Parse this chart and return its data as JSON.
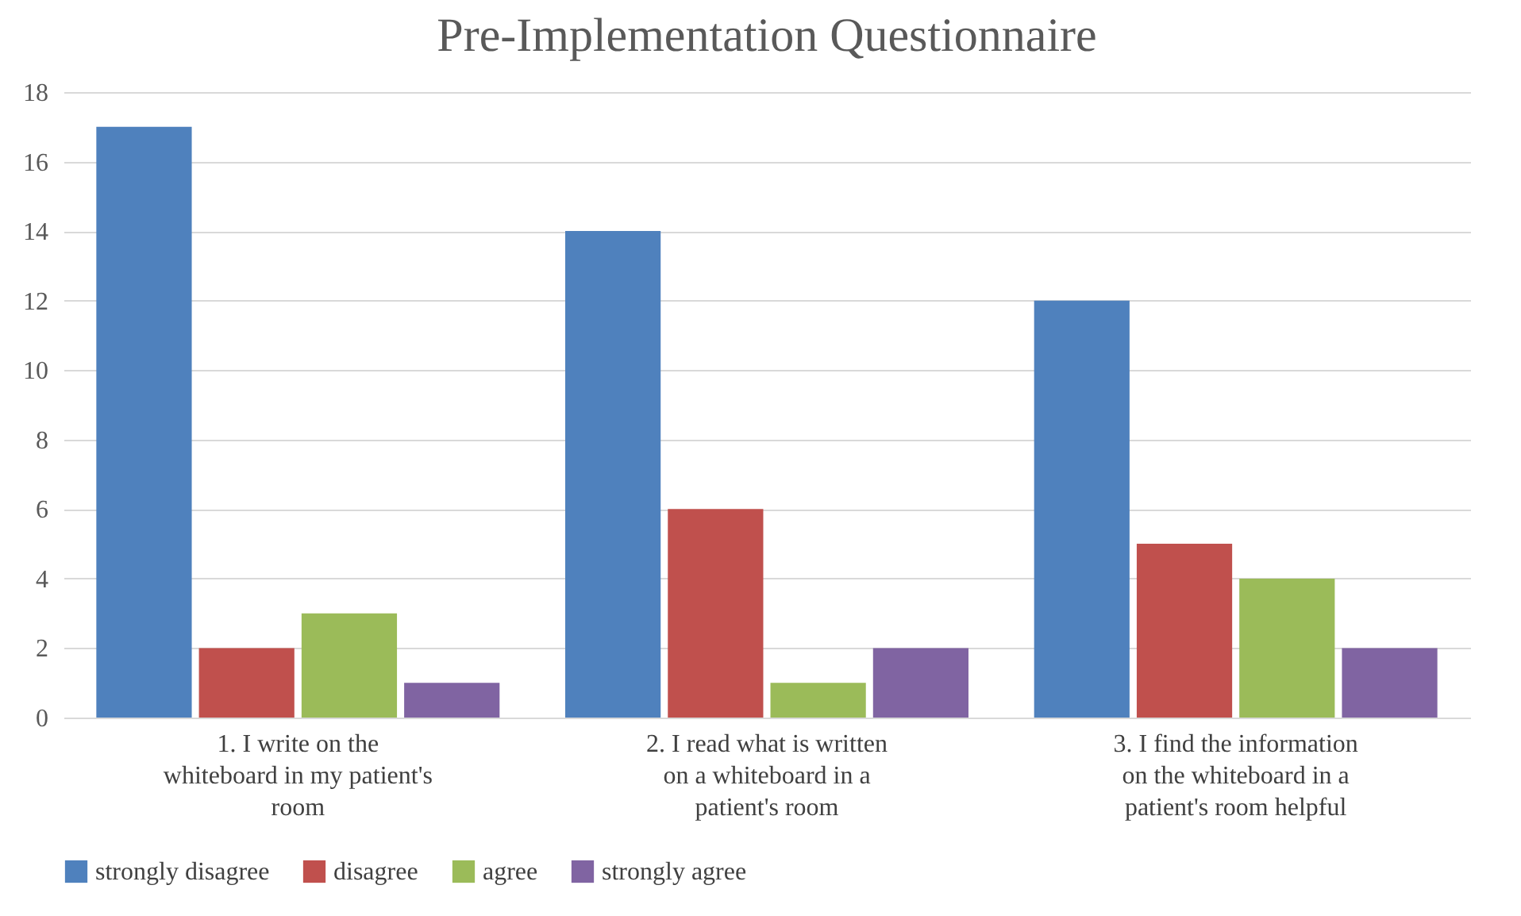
{
  "chart_data": {
    "type": "bar",
    "title": "Pre-Implementation Questionnaire",
    "categories": [
      "1. I write on the whiteboard in my patient's room",
      "2. I read what is written on a whiteboard in a patient's room",
      "3. I find the information on the whiteboard in a patient's room helpful"
    ],
    "series": [
      {
        "name": "strongly disagree",
        "color": "#4f81bd",
        "values": [
          17,
          14,
          12
        ]
      },
      {
        "name": "disagree",
        "color": "#c0504d",
        "values": [
          2,
          6,
          5
        ]
      },
      {
        "name": "agree",
        "color": "#9bbb59",
        "values": [
          3,
          1,
          4
        ]
      },
      {
        "name": "strongly agree",
        "color": "#8064a2",
        "values": [
          1,
          2,
          2
        ]
      }
    ],
    "ylim": [
      0,
      18
    ],
    "yticks": [
      0,
      2,
      4,
      6,
      8,
      10,
      12,
      14,
      16,
      18
    ],
    "grid": "y",
    "legend": "bottom"
  }
}
